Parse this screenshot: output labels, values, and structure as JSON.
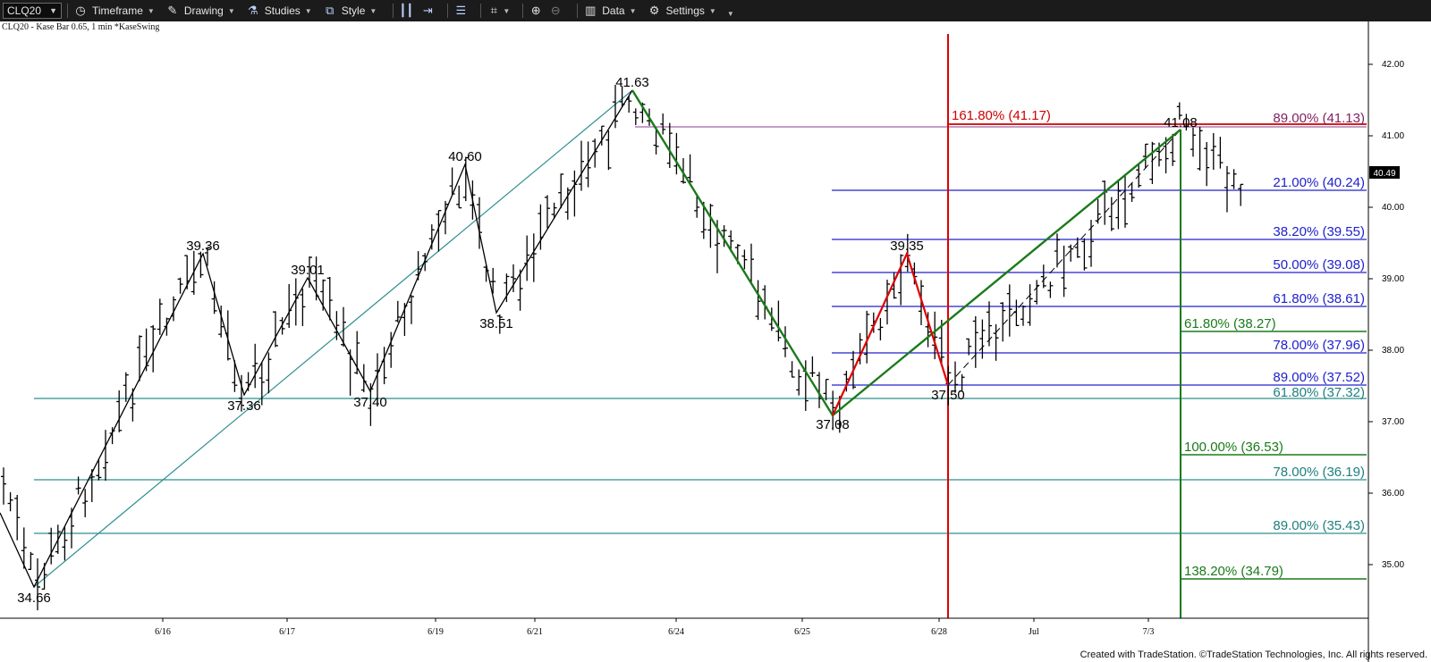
{
  "toolbar": {
    "symbol": "CLQ20",
    "timeframe": "Timeframe",
    "drawing": "Drawing",
    "studies": "Studies",
    "style": "Style",
    "data": "Data",
    "settings": "Settings",
    "icons": [
      "clock-icon",
      "pencil-icon",
      "flask-icon",
      "style-icon",
      "bars-icon",
      "compress-icon",
      "expand-icon",
      "panels-icon",
      "cursor-icon",
      "zoom-in-icon",
      "zoom-out-icon",
      "data-chart-icon",
      "gear-icon"
    ]
  },
  "chart_data": {
    "type": "bar",
    "subtitle": "CLQ20 - Kase Bar 0.65, 1 min  *KaseSwing",
    "last_price": "40.49",
    "ylim": [
      34.2,
      42.5
    ],
    "y_ticks": [
      "42.00",
      "41.00",
      "40.00",
      "39.00",
      "38.00",
      "37.00",
      "36.00",
      "35.00"
    ],
    "x_ticks": [
      "6/16",
      "6/17",
      "6/19",
      "6/21",
      "6/24",
      "6/25",
      "6/28",
      "Jul",
      "7/3"
    ],
    "swing_labels": [
      "34.66",
      "39.36",
      "37.36",
      "39.01",
      "37.40",
      "40.60",
      "38.51",
      "41.63",
      "37.08",
      "39.35",
      "37.50",
      "41.08"
    ],
    "fib_levels": [
      {
        "label": "161.80% (41.17)",
        "price": 41.17,
        "color": "#cc0000"
      },
      {
        "label": "89.00% (41.13)",
        "price": 41.13,
        "color": "#7f1f5f"
      },
      {
        "label": "21.00% (40.24)",
        "price": 40.24,
        "color": "#2020cc"
      },
      {
        "label": "38.20% (39.55)",
        "price": 39.55,
        "color": "#2020cc"
      },
      {
        "label": "50.00% (39.08)",
        "price": 39.08,
        "color": "#2020cc"
      },
      {
        "label": "61.80% (38.61)",
        "price": 38.61,
        "color": "#2020cc"
      },
      {
        "label": "61.80% (38.27)",
        "price": 38.27,
        "color": "#1a7a1a"
      },
      {
        "label": "78.00% (37.96)",
        "price": 37.96,
        "color": "#2020cc"
      },
      {
        "label": "89.00% (37.52)",
        "price": 37.52,
        "color": "#2020cc"
      },
      {
        "label": "61.80% (37.32)",
        "price": 37.32,
        "color": "#1f7f7f"
      },
      {
        "label": "100.00% (36.53)",
        "price": 36.53,
        "color": "#1a7a1a"
      },
      {
        "label": "78.00% (36.19)",
        "price": 36.19,
        "color": "#1f7f7f"
      },
      {
        "label": "89.00% (35.43)",
        "price": 35.43,
        "color": "#1f7f7f"
      },
      {
        "label": "138.20% (34.79)",
        "price": 34.79,
        "color": "#1a7a1a"
      }
    ],
    "colors": {
      "teal": "#2f8f8f",
      "blue": "#2020cc",
      "green": "#1a7a1a",
      "red": "#e00000",
      "purple": "#a064a0",
      "black": "#000000"
    }
  },
  "footer": "Created with TradeStation. ©TradeStation Technologies, Inc. All rights reserved."
}
